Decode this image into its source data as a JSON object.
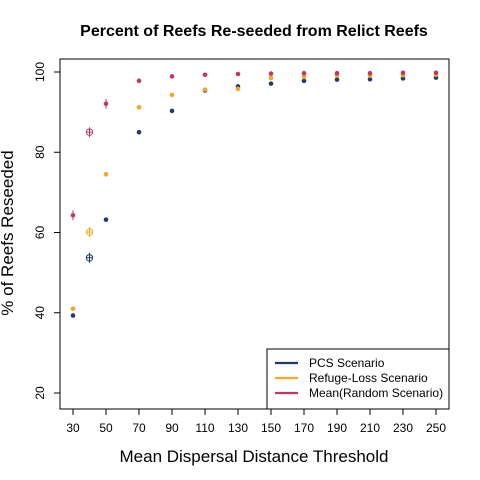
{
  "chart_data": {
    "type": "scatter",
    "title": "Percent of Reefs Re-seeded from Relict Reefs",
    "xlabel": "Mean Dispersal Distance Threshold",
    "ylabel": "%  of Reefs Reseeded",
    "x_ticks": [
      30,
      50,
      70,
      90,
      110,
      130,
      150,
      170,
      190,
      210,
      230,
      250
    ],
    "y_ticks": [
      20,
      40,
      60,
      80,
      100
    ],
    "xlim": [
      30,
      250
    ],
    "ylim": [
      20,
      100
    ],
    "grid": false,
    "legend_position": "bottom-right",
    "series": [
      {
        "name": "PCS Scenario",
        "color": "#1f3a6e",
        "x": [
          30,
          50,
          70,
          90,
          110,
          130,
          150,
          170,
          190,
          210,
          230,
          250
        ],
        "y": [
          39.3,
          63.2,
          85.0,
          90.3,
          95.4,
          96.4,
          97.1,
          97.8,
          98.1,
          98.2,
          98.4,
          98.6
        ]
      },
      {
        "name": "Refuge-Loss Scenario",
        "color": "#f5a623",
        "x": [
          30,
          50,
          70,
          90,
          110,
          130,
          150,
          170,
          190,
          210,
          230,
          250
        ],
        "y": [
          41.0,
          74.5,
          91.2,
          94.3,
          95.6,
          95.8,
          98.5,
          98.8,
          99.1,
          99.1,
          99.2,
          99.3
        ]
      },
      {
        "name": "Mean(Random Scenario)",
        "color": "#c2366a",
        "x": [
          30,
          50,
          70,
          90,
          110,
          130,
          150,
          170,
          190,
          210,
          230,
          250
        ],
        "y": [
          64.3,
          92.1,
          97.8,
          98.9,
          99.3,
          99.5,
          99.6,
          99.7,
          99.7,
          99.7,
          99.8,
          99.8
        ]
      }
    ],
    "annotations": [
      {
        "x": 40,
        "y": 53.7,
        "color": "#1f3a6e",
        "marker": "circled-plus"
      },
      {
        "x": 40,
        "y": 60.1,
        "color": "#f5a623",
        "marker": "circled-plus"
      },
      {
        "x": 40,
        "y": 85.0,
        "color": "#c2366a",
        "marker": "circled-plus"
      }
    ]
  }
}
